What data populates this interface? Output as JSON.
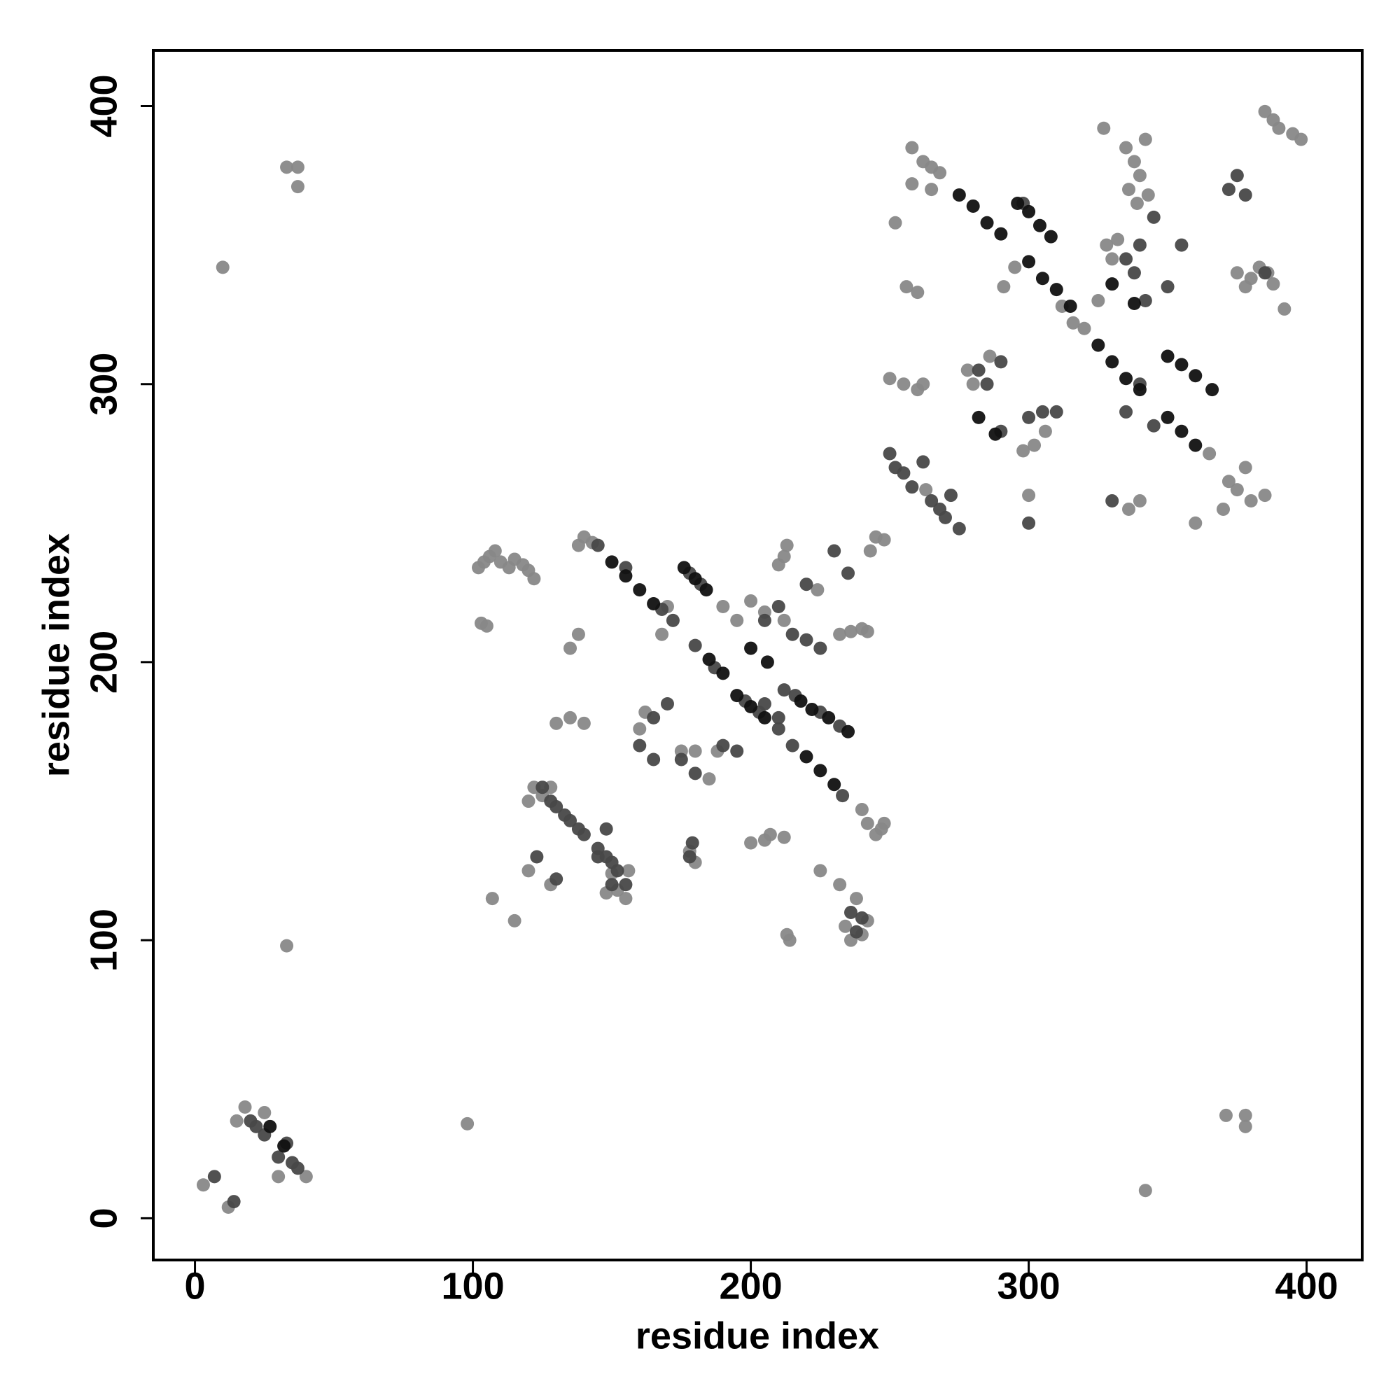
{
  "chart_data": {
    "type": "scatter",
    "xlabel": "residue index",
    "ylabel": "residue index",
    "xlim": [
      -15,
      420
    ],
    "ylim": [
      -15,
      420
    ],
    "xticks": [
      0,
      100,
      200,
      300,
      400
    ],
    "yticks": [
      0,
      100,
      200,
      300,
      400
    ],
    "series": [
      {
        "color": "#888888",
        "x": [
          3,
          18,
          15,
          25,
          30,
          40,
          12,
          10,
          33,
          33,
          37,
          37,
          98,
          342,
          371,
          378,
          378,
          102,
          104,
          106,
          108,
          110,
          113,
          115,
          118,
          120,
          122,
          103,
          105,
          107,
          115,
          140,
          143,
          138,
          135,
          138,
          122,
          120,
          125,
          128,
          130,
          135,
          140,
          152,
          155,
          148,
          150,
          156,
          234,
          236,
          238,
          240,
          242,
          213,
          214,
          205,
          207,
          212,
          212,
          213,
          210,
          232,
          236,
          240,
          242,
          245,
          243,
          240,
          242,
          245,
          247,
          248,
          258,
          262,
          265,
          268,
          258,
          265,
          256,
          260,
          250,
          255,
          260,
          252,
          262,
          263,
          327,
          335,
          338,
          340,
          336,
          339,
          343,
          342,
          328,
          332,
          330,
          375,
          380,
          383,
          386,
          388,
          378,
          392,
          385,
          388,
          390,
          395,
          398,
          375,
          380,
          385,
          378,
          372,
          370,
          360,
          365,
          300,
          298,
          302,
          306,
          280,
          278,
          286,
          291,
          295,
          312,
          316,
          320,
          325,
          336,
          340,
          180,
          175,
          185,
          188,
          160,
          162,
          170,
          168,
          190,
          195,
          200,
          205,
          212,
          178,
          180,
          200,
          120,
          128,
          225,
          232,
          224,
          248
        ],
        "values": [
          12,
          40,
          35,
          38,
          15,
          15,
          4,
          342,
          98,
          378,
          378,
          371,
          34,
          10,
          37,
          37,
          33,
          234,
          236,
          238,
          240,
          236,
          234,
          237,
          235,
          233,
          230,
          214,
          213,
          115,
          107,
          245,
          243,
          242,
          205,
          210,
          155,
          150,
          152,
          155,
          178,
          180,
          178,
          118,
          115,
          117,
          124,
          125,
          105,
          100,
          115,
          102,
          107,
          102,
          100,
          136,
          138,
          137,
          238,
          242,
          235,
          210,
          211,
          212,
          211,
          245,
          240,
          147,
          142,
          138,
          140,
          244,
          385,
          380,
          378,
          376,
          372,
          370,
          335,
          333,
          302,
          300,
          298,
          358,
          300,
          262,
          392,
          385,
          380,
          375,
          370,
          365,
          368,
          388,
          350,
          352,
          345,
          340,
          338,
          342,
          340,
          336,
          335,
          327,
          398,
          395,
          392,
          390,
          388,
          262,
          258,
          260,
          270,
          265,
          255,
          250,
          275,
          260,
          276,
          278,
          283,
          300,
          305,
          310,
          335,
          342,
          328,
          322,
          320,
          330,
          255,
          258,
          168,
          168,
          158,
          168,
          176,
          182,
          220,
          210,
          220,
          215,
          222,
          218,
          215,
          132,
          128,
          135,
          125,
          120,
          125,
          120,
          226,
          142
        ]
      },
      {
        "color": "#484848",
        "x": [
          20,
          22,
          25,
          33,
          35,
          37,
          30,
          14,
          7,
          145,
          155,
          168,
          172,
          180,
          187,
          198,
          203,
          210,
          215,
          233,
          178,
          182,
          212,
          216,
          225,
          232,
          125,
          128,
          130,
          133,
          135,
          138,
          140,
          145,
          148,
          150,
          152,
          150,
          145,
          148,
          123,
          130,
          155,
          238,
          240,
          236,
          250,
          252,
          255,
          258,
          262,
          265,
          268,
          270,
          272,
          275,
          305,
          300,
          310,
          290,
          285,
          282,
          290,
          298,
          335,
          338,
          340,
          345,
          342,
          350,
          355,
          372,
          375,
          378,
          385,
          345,
          335,
          340,
          330,
          300,
          165,
          170,
          175,
          180,
          210,
          205,
          215,
          220,
          225,
          230,
          220,
          235,
          160,
          165,
          178,
          179,
          210,
          205,
          190,
          195
        ],
        "values": [
          35,
          33,
          30,
          27,
          20,
          18,
          22,
          6,
          15,
          242,
          234,
          219,
          215,
          206,
          198,
          186,
          182,
          176,
          170,
          152,
          232,
          228,
          190,
          188,
          182,
          177,
          155,
          150,
          148,
          145,
          143,
          140,
          138,
          133,
          130,
          128,
          125,
          120,
          130,
          140,
          130,
          122,
          120,
          103,
          108,
          110,
          275,
          270,
          268,
          263,
          272,
          258,
          255,
          252,
          260,
          248,
          290,
          288,
          290,
          283,
          300,
          305,
          308,
          365,
          345,
          340,
          350,
          360,
          330,
          335,
          350,
          370,
          375,
          368,
          340,
          285,
          290,
          300,
          258,
          250,
          180,
          185,
          165,
          160,
          220,
          215,
          210,
          208,
          205,
          240,
          228,
          232,
          170,
          165,
          130,
          135,
          180,
          185,
          170,
          168
        ]
      },
      {
        "color": "#111111",
        "x": [
          27,
          32,
          150,
          155,
          160,
          165,
          185,
          190,
          195,
          200,
          205,
          220,
          225,
          230,
          176,
          180,
          184,
          218,
          222,
          228,
          235,
          275,
          280,
          285,
          290,
          300,
          305,
          310,
          315,
          325,
          330,
          335,
          340,
          350,
          355,
          360,
          296,
          300,
          304,
          308,
          350,
          355,
          360,
          366,
          200,
          206,
          330,
          338,
          288,
          282
        ],
        "values": [
          33,
          26,
          236,
          231,
          226,
          221,
          201,
          196,
          188,
          184,
          180,
          166,
          161,
          156,
          234,
          230,
          226,
          186,
          183,
          180,
          175,
          368,
          364,
          358,
          354,
          344,
          338,
          334,
          328,
          314,
          308,
          302,
          298,
          288,
          283,
          278,
          365,
          362,
          357,
          353,
          310,
          307,
          303,
          298,
          205,
          200,
          336,
          329,
          282,
          288
        ]
      }
    ]
  }
}
